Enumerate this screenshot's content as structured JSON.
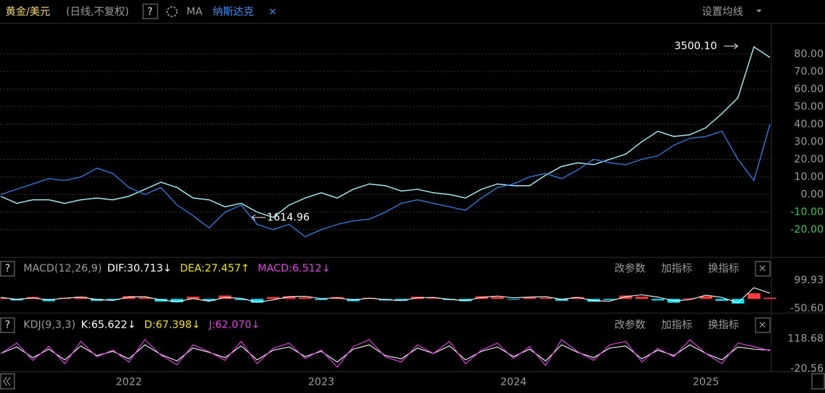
{
  "header": {
    "mode": "(日线,不复权)",
    "help": "?",
    "ma": "MA",
    "close": "×",
    "ma_settings": "设置均线"
  },
  "chart_data": [
    {
      "type": "line",
      "categories": [
        null,
        null,
        null,
        null,
        null,
        null,
        null,
        null,
        "2022",
        null,
        null,
        null,
        null,
        null,
        null,
        null,
        null,
        null,
        null,
        null,
        "2023",
        null,
        null,
        null,
        null,
        null,
        null,
        null,
        null,
        null,
        null,
        null,
        "2024",
        null,
        null,
        null,
        null,
        null,
        null,
        null,
        null,
        null,
        null,
        null,
        "2025",
        null,
        null,
        null,
        null
      ],
      "series": [
        {
          "name": "黄金/美元",
          "color": "#9be3e8",
          "values": [
            -1,
            -5,
            -3,
            -3,
            -5,
            -3,
            -2,
            -3,
            -1,
            3,
            7,
            4,
            -2,
            -3,
            -7,
            -5,
            -10,
            -13,
            -6,
            -2,
            1,
            -2,
            3,
            6,
            5,
            2,
            3,
            1,
            0,
            -2,
            3,
            6,
            5,
            5,
            11,
            16,
            18,
            17,
            20,
            23,
            30,
            36,
            33,
            34,
            38,
            46,
            55,
            84,
            78
          ]
        },
        {
          "name": "纳斯达克",
          "color": "#2f7de1",
          "values": [
            0,
            3,
            6,
            9,
            8,
            10,
            15,
            12,
            4,
            0,
            4,
            -6,
            -12,
            -19,
            -10,
            -6,
            -17,
            -20,
            -17,
            -24,
            -20,
            -17,
            -15,
            -14,
            -10,
            -5,
            -3,
            -5,
            -7,
            -9,
            -2,
            4,
            6,
            10,
            12,
            9,
            14,
            20,
            18,
            17,
            20,
            22,
            28,
            32,
            33,
            36,
            20,
            8,
            40
          ]
        }
      ],
      "annotations": [
        "3500.10",
        "1614.96"
      ],
      "ylim": [
        -35,
        95
      ],
      "yticks": [
        {
          "value": 80,
          "label": "80.00"
        },
        {
          "value": 70,
          "label": "70.00"
        },
        {
          "value": 60,
          "label": "60.00"
        },
        {
          "value": 50,
          "label": "50.00"
        },
        {
          "value": 40,
          "label": "40.00"
        },
        {
          "value": 30,
          "label": "30.00"
        },
        {
          "value": 20,
          "label": "20.00"
        },
        {
          "value": 10,
          "label": "10.00"
        },
        {
          "value": 0,
          "label": "0.00"
        },
        {
          "value": -10,
          "label": "-10.00"
        },
        {
          "value": -20,
          "label": "-20.00"
        }
      ],
      "grid": true
    },
    {
      "type": "macd",
      "title": "MACD(12,26,9)",
      "help": "?",
      "close": "×",
      "buttons": [
        "改参数",
        "加指标",
        "换指标"
      ],
      "readouts": [
        {
          "text": "DIF:30.713↓",
          "color": "#ffffff"
        },
        {
          "text": "DEA:27.457↑",
          "color": "#f5e400"
        },
        {
          "text": "MACD:6.512↓",
          "color": "#e43ee4"
        }
      ],
      "up_color": "#ff3b3b",
      "down_color": "#00e5ff",
      "series": [
        {
          "color": "#ff3b3b",
          "values": [
            5,
            -8,
            10,
            -12,
            6,
            12,
            -10,
            -6,
            15,
            8,
            -14,
            -18,
            12,
            -10,
            18,
            -6,
            -20,
            10,
            14,
            8,
            -6,
            10,
            -12,
            6,
            -8,
            -10,
            12,
            4,
            -6,
            -12,
            14,
            10,
            -4,
            8,
            6,
            -10,
            10,
            -15,
            -6,
            18,
            12,
            -8,
            -20,
            4,
            14,
            -10,
            -25,
            30,
            6.512
          ]
        },
        {
          "color": "#f0f0f0",
          "values": [
            8,
            -2,
            5,
            -5,
            4,
            10,
            -3,
            -8,
            10,
            12,
            -5,
            -15,
            2,
            -12,
            8,
            3,
            -18,
            -5,
            12,
            14,
            2,
            6,
            -6,
            4,
            -4,
            -9,
            6,
            8,
            -2,
            -10,
            8,
            15,
            6,
            10,
            12,
            -2,
            8,
            -10,
            -12,
            12,
            22,
            10,
            -10,
            -4,
            20,
            8,
            -20,
            60,
            30.713
          ]
        }
      ],
      "ylim": [
        -65,
        115
      ],
      "yticks": [
        99.93,
        {
          "value": -50.6,
          "label": "-50.60"
        }
      ]
    },
    {
      "type": "kdj",
      "title": "KDJ(9,3,3)",
      "help": "?",
      "close": "×",
      "buttons": [
        "改参数",
        "加指标",
        "换指标"
      ],
      "readouts": [
        {
          "text": "K:65.622↓",
          "color": "#ffffff"
        },
        {
          "text": "D:67.398↓",
          "color": "#f5e400"
        },
        {
          "text": "J:62.070↓",
          "color": "#e43ee4"
        }
      ],
      "series": [
        {
          "color": "#f0f0f0",
          "values": [
            50,
            80,
            30,
            70,
            20,
            85,
            40,
            60,
            25,
            90,
            45,
            15,
            75,
            55,
            30,
            85,
            20,
            65,
            80,
            35,
            60,
            10,
            70,
            90,
            40,
            25,
            75,
            50,
            85,
            20,
            60,
            80,
            35,
            70,
            15,
            90,
            55,
            30,
            75,
            85,
            25,
            65,
            40,
            90,
            50,
            20,
            80,
            70,
            65.622
          ]
        },
        {
          "color": "#e43ee4",
          "values": [
            50,
            98,
            18,
            82,
            2,
            106,
            34,
            66,
            10,
            114,
            42,
            -3,
            90,
            58,
            18,
            106,
            2,
            74,
            98,
            26,
            66,
            -14,
            82,
            114,
            34,
            10,
            90,
            50,
            106,
            2,
            66,
            98,
            26,
            82,
            -6,
            114,
            58,
            18,
            90,
            106,
            10,
            74,
            34,
            114,
            50,
            2,
            98,
            82,
            62.07
          ]
        }
      ],
      "ylim": [
        -35,
        135
      ],
      "yticks": [
        118.68,
        -20.56
      ]
    }
  ]
}
